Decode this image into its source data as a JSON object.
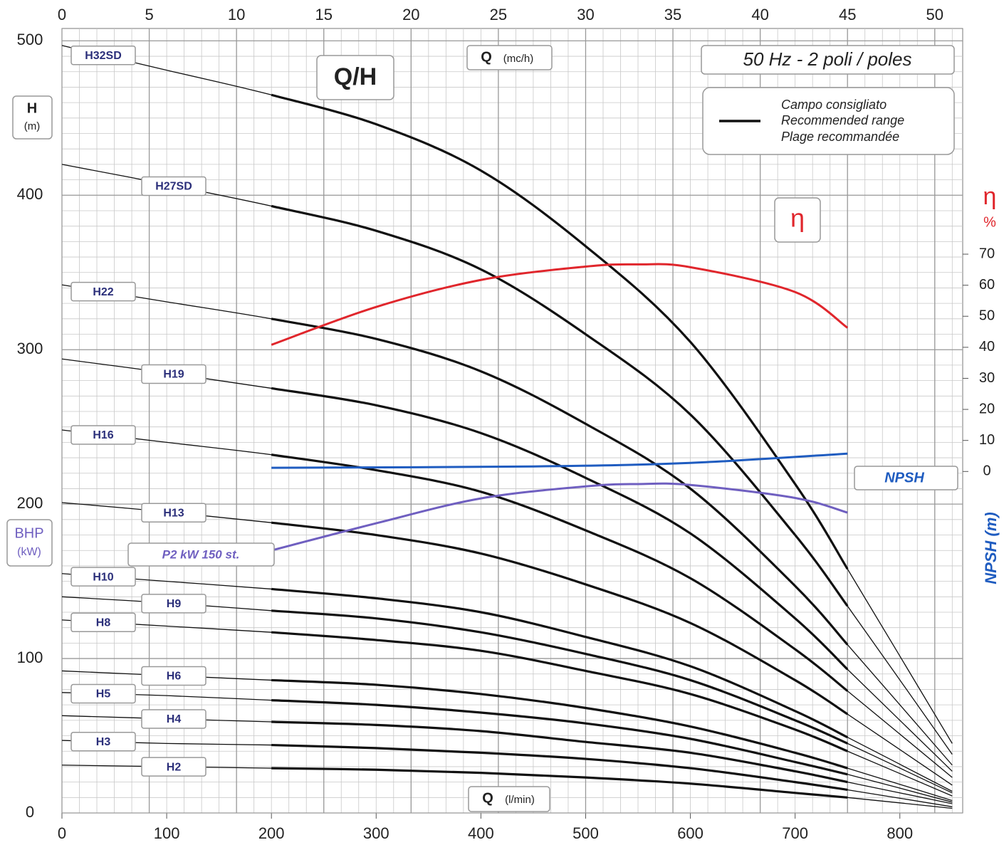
{
  "chart_data": {
    "type": "line",
    "title": "Q/H",
    "subtitle": "50 Hz - 2 poli / poles",
    "x_label": "Q",
    "x_unit": "(l/min)",
    "x2_label": "Q",
    "x2_unit": "(mc/h)",
    "y_label": "H",
    "y_unit": "(m)",
    "bhp_label": "BHP",
    "bhp_unit": "(kW)",
    "y2_label": "η",
    "y2_unit": "%",
    "npsh_axis_label": "NPSH (m)",
    "legend": [
      "Campo consigliato",
      "Recommended range",
      "Plage recommandée"
    ],
    "recommended_range": [
      200,
      750
    ],
    "xlim": [
      0,
      860
    ],
    "xticks": [
      0,
      100,
      200,
      300,
      400,
      500,
      600,
      700,
      800
    ],
    "x2lim": [
      0,
      51.6
    ],
    "x2ticks": [
      0,
      5,
      10,
      15,
      20,
      25,
      30,
      35,
      40,
      45,
      50
    ],
    "ylim": [
      0,
      508
    ],
    "yticks": [
      0,
      100,
      200,
      300,
      400,
      500
    ],
    "y2lim": [
      -110,
      142.7
    ],
    "y2ticks": [
      0,
      10,
      20,
      30,
      40,
      50,
      60,
      70
    ],
    "grid": true,
    "x": [
      0,
      100,
      200,
      300,
      400,
      500,
      600,
      700,
      750,
      850
    ],
    "series": [
      {
        "name": "H32SD",
        "color": "#111",
        "values": [
          497,
          481,
          465,
          446,
          416,
          367,
          305,
          213,
          158,
          45
        ]
      },
      {
        "name": "H27SD",
        "color": "#111",
        "values": [
          420,
          407,
          393,
          377,
          352,
          310,
          258,
          180,
          134,
          38
        ]
      },
      {
        "name": "H22",
        "color": "#111",
        "values": [
          342,
          331,
          320,
          307,
          286,
          252,
          210,
          147,
          109,
          31
        ]
      },
      {
        "name": "H19",
        "color": "#111",
        "values": [
          294,
          285,
          275,
          264,
          246,
          217,
          181,
          126,
          93,
          27
        ]
      },
      {
        "name": "H16",
        "color": "#111",
        "values": [
          248,
          240,
          232,
          222,
          208,
          183,
          152,
          106,
          79,
          23
        ]
      },
      {
        "name": "H13",
        "color": "#111",
        "values": [
          201,
          195,
          188,
          180,
          168,
          148,
          123,
          86,
          64,
          18
        ]
      },
      {
        "name": "H10",
        "color": "#111",
        "values": [
          155,
          150,
          145,
          139,
          130,
          114,
          95,
          66,
          49,
          14
        ]
      },
      {
        "name": "H9",
        "color": "#111",
        "values": [
          140,
          136,
          131,
          126,
          117,
          103,
          86,
          60,
          45,
          13
        ]
      },
      {
        "name": "H8",
        "color": "#111",
        "values": [
          125,
          121,
          117,
          112,
          105,
          92,
          77,
          54,
          40,
          11
        ]
      },
      {
        "name": "H6",
        "color": "#111",
        "values": [
          92,
          89,
          86,
          83,
          77,
          68,
          56,
          39,
          29,
          8
        ]
      },
      {
        "name": "H5",
        "color": "#111",
        "values": [
          78,
          76,
          73,
          70,
          65,
          58,
          48,
          33,
          25,
          7
        ]
      },
      {
        "name": "H4",
        "color": "#111",
        "values": [
          63,
          61,
          59,
          57,
          53,
          46,
          39,
          27,
          20,
          6
        ]
      },
      {
        "name": "H3",
        "color": "#111",
        "values": [
          47,
          45,
          44,
          42,
          39,
          35,
          29,
          20,
          15,
          4
        ]
      },
      {
        "name": "H2",
        "color": "#111",
        "values": [
          31,
          30,
          29,
          28,
          26,
          23,
          19,
          13,
          10,
          3
        ]
      },
      {
        "name": "η",
        "color": "#e0262c",
        "axis": "y2",
        "x": [
          200,
          300,
          400,
          500,
          550,
          600,
          700,
          750
        ],
        "values": [
          40.8,
          53,
          61.7,
          66,
          66.7,
          65.8,
          57.8,
          46.3
        ]
      },
      {
        "name": "NPSH",
        "color": "#1f5cc0",
        "x": [
          200,
          450,
          600,
          750
        ],
        "values": [
          223.5,
          224.4,
          226.7,
          232.7
        ]
      },
      {
        "name": "P2 kW 150 st.",
        "color": "#6f5fc0",
        "x": [
          200,
          300,
          400,
          500,
          550,
          600,
          700,
          750
        ],
        "values": [
          170,
          187.6,
          203.7,
          211.5,
          213,
          212.4,
          204,
          194.5
        ]
      }
    ]
  }
}
